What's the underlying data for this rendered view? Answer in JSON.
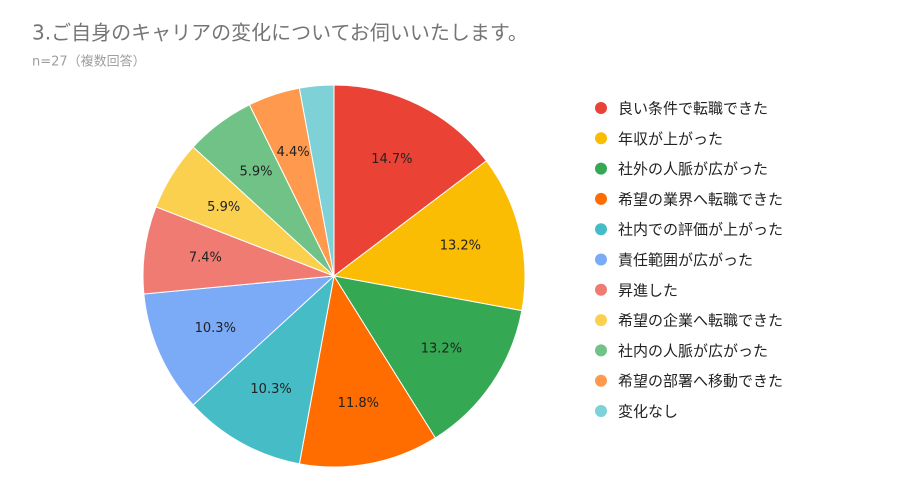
{
  "chart_data": {
    "type": "pie",
    "title": "3.ご自身のキャリアの変化についてお伺いいたします。",
    "subtitle": "n=27（複数回答）",
    "categories": [
      "良い条件で転職できた",
      "年収が上がった",
      "社外の人脈が広がった",
      "希望の業界へ転職できた",
      "社内での評価が上がった",
      "責任範囲が広がった",
      "昇進した",
      "希望の企業へ転職できた",
      "社内の人脈が広がった",
      "希望の部署へ移動できた",
      "変化なし"
    ],
    "values": [
      14.7,
      13.2,
      13.2,
      11.8,
      10.3,
      10.3,
      7.4,
      5.9,
      5.9,
      4.4,
      2.9
    ],
    "value_labels": [
      "14.7%",
      "13.2%",
      "13.2%",
      "11.8%",
      "10.3%",
      "10.3%",
      "7.4%",
      "5.9%",
      "5.9%",
      "4.4%",
      null
    ],
    "colors": [
      "#ea4335",
      "#fbbc04",
      "#34a853",
      "#ff6d01",
      "#46bdc6",
      "#7baaf7",
      "#f07b72",
      "#fcd04f",
      "#71c287",
      "#ff994d",
      "#7ed1d7"
    ],
    "legend": "right"
  }
}
